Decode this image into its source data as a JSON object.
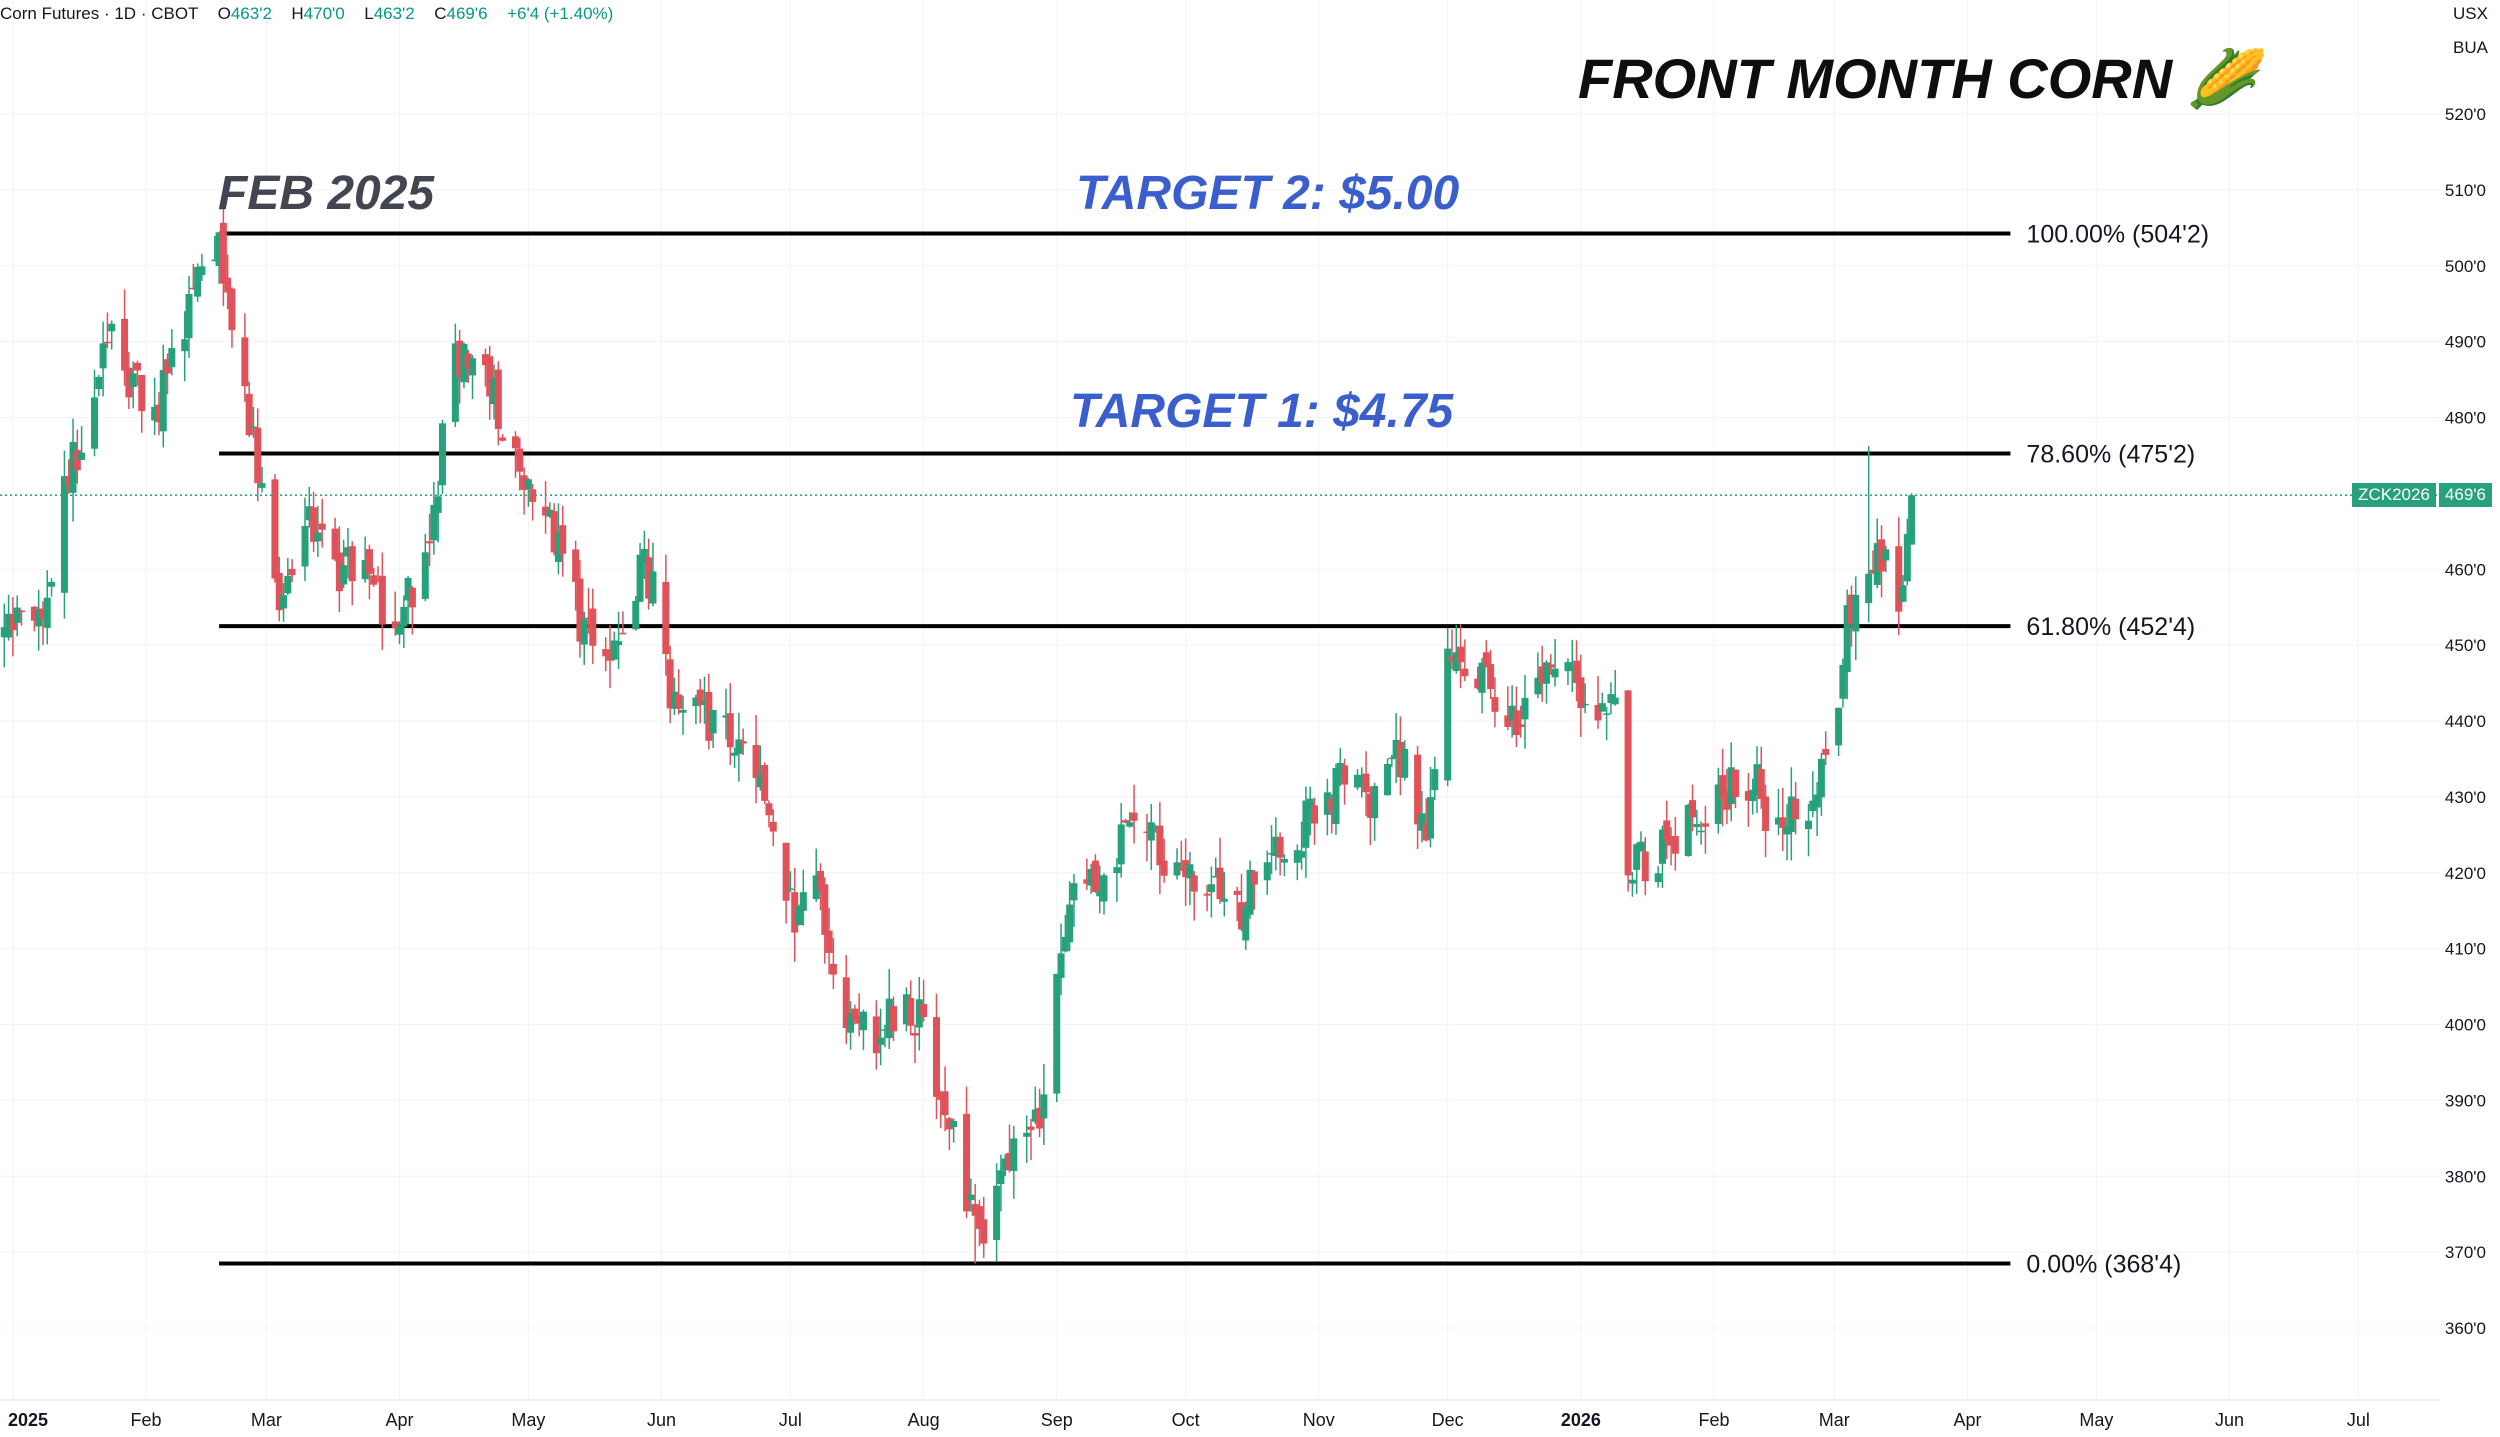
{
  "header": {
    "symbol_name": "Corn Futures",
    "sep1": "·",
    "interval": "1D",
    "sep2": "·",
    "exchange": "CBOT",
    "open_label": "O",
    "open_value": "463'2",
    "high_label": "H",
    "high_value": "470'0",
    "low_label": "L",
    "low_value": "463'2",
    "close_label": "C",
    "close_value": "469'6",
    "change": "+6'4 (+1.40%)"
  },
  "units": {
    "currency": "USX",
    "mode": "BUA"
  },
  "title_text": "FRONT MONTH CORN",
  "title_emoji": "🌽",
  "annotations": {
    "feb_2025": "FEB 2025",
    "target2": "TARGET 2: $5.00",
    "target1": "TARGET 1: $4.75"
  },
  "price_tag": {
    "symbol": "ZCK2026",
    "value": "469'6"
  },
  "colors": {
    "up": "#26a17b",
    "down": "#e0525a",
    "fib_line": "#000000",
    "target_text": "#3a5fcd",
    "grid": "#f0f3fa"
  },
  "chart_data": {
    "type": "candlestick",
    "title": "FRONT MONTH CORN",
    "y_range": [
      354,
      528
    ],
    "y_ticks": [
      {
        "value": 520,
        "label": "520'0"
      },
      {
        "value": 510,
        "label": "510'0"
      },
      {
        "value": 500,
        "label": "500'0"
      },
      {
        "value": 490,
        "label": "490'0"
      },
      {
        "value": 480,
        "label": "480'0"
      },
      {
        "value": 470,
        "label": "470'0"
      },
      {
        "value": 460,
        "label": "460'0"
      },
      {
        "value": 450,
        "label": "450'0"
      },
      {
        "value": 440,
        "label": "440'0"
      },
      {
        "value": 430,
        "label": "430'0"
      },
      {
        "value": 420,
        "label": "420'0"
      },
      {
        "value": 410,
        "label": "410'0"
      },
      {
        "value": 400,
        "label": "400'0"
      },
      {
        "value": 390,
        "label": "390'0"
      },
      {
        "value": 380,
        "label": "380'0"
      },
      {
        "value": 370,
        "label": "370'0"
      },
      {
        "value": 360,
        "label": "360'0"
      }
    ],
    "x_ticks": [
      {
        "date": "2025-01-01",
        "label": "2025",
        "bold": true
      },
      {
        "date": "2025-02-01",
        "label": "Feb"
      },
      {
        "date": "2025-03-01",
        "label": "Mar"
      },
      {
        "date": "2025-04-01",
        "label": "Apr"
      },
      {
        "date": "2025-05-01",
        "label": "May"
      },
      {
        "date": "2025-06-01",
        "label": "Jun"
      },
      {
        "date": "2025-07-01",
        "label": "Jul"
      },
      {
        "date": "2025-08-01",
        "label": "Aug"
      },
      {
        "date": "2025-09-01",
        "label": "Sep"
      },
      {
        "date": "2025-10-01",
        "label": "Oct"
      },
      {
        "date": "2025-11-01",
        "label": "Nov"
      },
      {
        "date": "2025-12-01",
        "label": "Dec"
      },
      {
        "date": "2026-01-01",
        "label": "2026",
        "bold": true
      },
      {
        "date": "2026-02-01",
        "label": "Feb"
      },
      {
        "date": "2026-03-01",
        "label": "Mar"
      },
      {
        "date": "2026-04-01",
        "label": "Apr"
      },
      {
        "date": "2026-05-01",
        "label": "May"
      },
      {
        "date": "2026-06-01",
        "label": "Jun"
      },
      {
        "date": "2026-07-01",
        "label": "Jul"
      }
    ],
    "x_domain": [
      "2024-12-29",
      "2026-07-20"
    ],
    "fib_levels": [
      {
        "level": "100.00%",
        "price": 504.25,
        "label": "100.00% (504'2)"
      },
      {
        "level": "78.60%",
        "price": 475.25,
        "label": "78.60% (475'2)"
      },
      {
        "level": "61.80%",
        "price": 452.5,
        "label": "61.80% (452'4)"
      },
      {
        "level": "0.00%",
        "price": 368.5,
        "label": "0.00% (368'4)"
      }
    ],
    "fib_start": "2025-02-18",
    "fib_end": "2026-04-11",
    "last_price": 469.75,
    "path_anchors": [
      [
        "2024-12-30",
        451
      ],
      [
        "2025-01-08",
        455
      ],
      [
        "2025-01-14",
        472
      ],
      [
        "2025-01-23",
        491
      ],
      [
        "2025-02-03",
        480
      ],
      [
        "2025-02-14",
        499
      ],
      [
        "2025-02-18",
        502
      ],
      [
        "2025-02-24",
        484
      ],
      [
        "2025-03-04",
        453
      ],
      [
        "2025-03-10",
        466
      ],
      [
        "2025-03-17",
        460
      ],
      [
        "2025-03-24",
        461
      ],
      [
        "2025-03-31",
        452
      ],
      [
        "2025-04-08",
        464
      ],
      [
        "2025-04-14",
        488
      ],
      [
        "2025-04-22",
        485
      ],
      [
        "2025-04-28",
        475
      ],
      [
        "2025-05-05",
        468
      ],
      [
        "2025-05-12",
        455
      ],
      [
        "2025-05-20",
        445
      ],
      [
        "2025-05-28",
        462
      ],
      [
        "2025-06-04",
        442
      ],
      [
        "2025-06-16",
        438
      ],
      [
        "2025-06-25",
        430
      ],
      [
        "2025-07-03",
        413
      ],
      [
        "2025-07-07",
        418
      ],
      [
        "2025-07-14",
        400
      ],
      [
        "2025-07-21",
        397
      ],
      [
        "2025-07-28",
        405
      ],
      [
        "2025-08-04",
        393
      ],
      [
        "2025-08-11",
        378
      ],
      [
        "2025-08-13",
        372
      ],
      [
        "2025-08-20",
        381
      ],
      [
        "2025-08-28",
        386
      ],
      [
        "2025-09-02",
        408
      ],
      [
        "2025-09-05",
        419
      ],
      [
        "2025-09-12",
        421
      ],
      [
        "2025-09-19",
        427
      ],
      [
        "2025-09-26",
        423
      ],
      [
        "2025-10-06",
        419
      ],
      [
        "2025-10-13",
        414
      ],
      [
        "2025-10-20",
        422
      ],
      [
        "2025-10-28",
        426
      ],
      [
        "2025-11-05",
        432
      ],
      [
        "2025-11-13",
        430
      ],
      [
        "2025-11-19",
        437
      ],
      [
        "2025-11-26",
        425
      ],
      [
        "2025-12-01",
        448
      ],
      [
        "2025-12-10",
        446
      ],
      [
        "2025-12-17",
        440
      ],
      [
        "2025-12-26",
        450
      ],
      [
        "2026-01-05",
        440
      ],
      [
        "2026-01-09",
        446
      ],
      [
        "2026-01-12",
        421
      ],
      [
        "2026-01-22",
        424
      ],
      [
        "2026-02-01",
        430
      ],
      [
        "2026-02-09",
        433
      ],
      [
        "2026-02-16",
        426
      ],
      [
        "2026-02-26",
        432
      ],
      [
        "2026-03-02",
        444
      ],
      [
        "2026-03-06",
        460
      ],
      [
        "2026-03-09",
        458
      ],
      [
        "2026-03-13",
        462
      ],
      [
        "2026-03-17",
        455
      ],
      [
        "2026-03-18",
        463
      ],
      [
        "2026-03-19",
        469.75
      ]
    ],
    "key_bars": [
      {
        "date": "2026-03-09",
        "high": 476.25
      },
      {
        "date": "2025-08-13",
        "low": 368.5
      },
      {
        "date": "2025-02-18",
        "high": 504.25
      },
      {
        "date": "2026-03-19",
        "open": 463.25,
        "high": 470,
        "low": 463.25,
        "close": 469.75
      }
    ]
  }
}
